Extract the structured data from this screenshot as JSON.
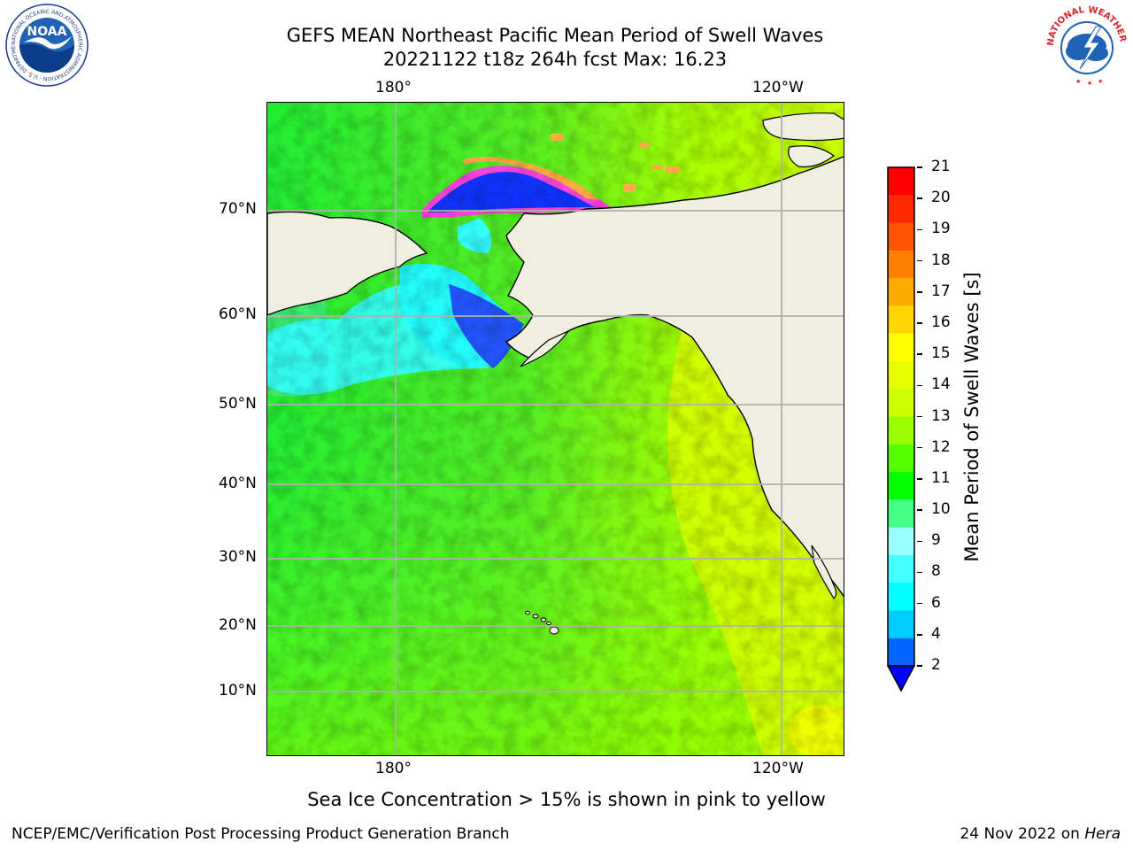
{
  "header": {
    "title_line1": "GEFS MEAN Northeast Pacific Mean Period of Swell Waves",
    "title_line2": "20221122 t18z 264h fcst   Max: 16.23"
  },
  "logos": {
    "noaa_text": "NOAA",
    "noaa_ring_text": "NATIONAL OCEANIC AND ATMOSPHERIC ADMINISTRATION · U.S. DEPARTMENT OF COMMERCE",
    "nws_ring_text": "NATIONAL WEATHER SERVICE"
  },
  "map": {
    "lon_labels": [
      "180°",
      "120°W"
    ],
    "lat_labels": [
      "70°N",
      "60°N",
      "50°N",
      "40°N",
      "30°N",
      "20°N",
      "10°N"
    ],
    "land_color": "#efefdf",
    "grid_color": "#b0b0b0"
  },
  "colorbar": {
    "label": "Mean Period of Swell Waves [s]",
    "ticks": [
      "21",
      "20",
      "19",
      "18",
      "17",
      "16",
      "15",
      "14",
      "13",
      "12",
      "11",
      "10",
      "9",
      "8",
      "6",
      "4",
      "2"
    ],
    "colors": [
      "#ff0000",
      "#ff2a00",
      "#ff5500",
      "#ff8000",
      "#ffaa00",
      "#ffd400",
      "#ffff00",
      "#e6ff00",
      "#ccff00",
      "#99ff00",
      "#55ff00",
      "#00ff00",
      "#44ff88",
      "#99ffff",
      "#44ffff",
      "#00ffff",
      "#00ccff",
      "#0066ff"
    ],
    "extend_color": "#0000ff"
  },
  "notes": {
    "sea_ice": "Sea Ice Concentration > 15% is shown in pink to yellow"
  },
  "footer": {
    "left": "NCEP/EMC/Verification Post Processing Product Generation Branch",
    "date": "24 Nov 2022 on ",
    "machine": "Hera"
  }
}
